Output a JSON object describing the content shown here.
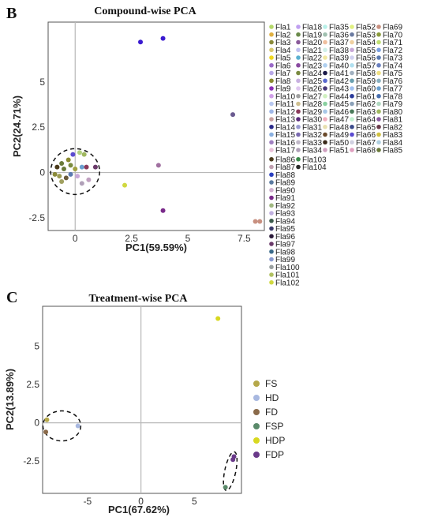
{
  "chart_data": [
    {
      "panel_label": "B",
      "type": "scatter",
      "title": "Compound-wise PCA",
      "xlabel": "PC1(59.59%)",
      "ylabel": "PC2(24.71%)",
      "xlim": [
        -1.2,
        8.4
      ],
      "ylim": [
        -3.2,
        8.3
      ],
      "xticks": [
        "0",
        "2.5",
        "5",
        "7.5"
      ],
      "xtick_values": [
        0,
        2.5,
        5,
        7.5
      ],
      "yticks": [
        "5",
        "2.5",
        "0",
        "-2.5"
      ],
      "ytick_values": [
        5,
        2.5,
        0,
        -2.5
      ],
      "grid": true,
      "legend_position": "right",
      "legend": [
        {
          "name": "Fla1",
          "color": "#b5d86a"
        },
        {
          "name": "Fla2",
          "color": "#e0b040"
        },
        {
          "name": "Fla3",
          "color": "#8a8a3a"
        },
        {
          "name": "Fla4",
          "color": "#d8c870"
        },
        {
          "name": "Fla5",
          "color": "#f0d820"
        },
        {
          "name": "Fla6",
          "color": "#9a6ac8"
        },
        {
          "name": "Fla7",
          "color": "#b8a8e8"
        },
        {
          "name": "Fla8",
          "color": "#8a8a30"
        },
        {
          "name": "Fla9",
          "color": "#8a30b8"
        },
        {
          "name": "Fla10",
          "color": "#d0a0e8"
        },
        {
          "name": "Fla11",
          "color": "#b8c8f0"
        },
        {
          "name": "Fla12",
          "color": "#a0b8e8"
        },
        {
          "name": "Fla13",
          "color": "#c8a0a0"
        },
        {
          "name": "Fla14",
          "color": "#2a2a8a"
        },
        {
          "name": "Fla15",
          "color": "#8ab0e0"
        },
        {
          "name": "Fla16",
          "color": "#a080c0"
        },
        {
          "name": "Fla17",
          "color": "#e8c0d8"
        },
        {
          "name": "Fla18",
          "color": "#c0a0f0"
        },
        {
          "name": "Fla19",
          "color": "#6a8a4a"
        },
        {
          "name": "Fla20",
          "color": "#8a5a9a"
        },
        {
          "name": "Fla21",
          "color": "#c0c0f0"
        },
        {
          "name": "Fla22",
          "color": "#5ab0d0"
        },
        {
          "name": "Fla23",
          "color": "#8a4aa0"
        },
        {
          "name": "Fla24",
          "color": "#7a8a40"
        },
        {
          "name": "Fla25",
          "color": "#c8b0e0"
        },
        {
          "name": "Fla26",
          "color": "#e0c8f0"
        },
        {
          "name": "Fla27",
          "color": "#a0a0a0"
        },
        {
          "name": "Fla28",
          "color": "#d0c090"
        },
        {
          "name": "Fla29",
          "color": "#8a3a5a"
        },
        {
          "name": "Fla30",
          "color": "#5a2a7a"
        },
        {
          "name": "Fla31",
          "color": "#9a9ad0"
        },
        {
          "name": "Fla32",
          "color": "#7a6ab0"
        },
        {
          "name": "Fla33",
          "color": "#c0b8c8"
        },
        {
          "name": "Fla34",
          "color": "#b0a0b8"
        },
        {
          "name": "Fla35",
          "color": "#b8f0e8"
        },
        {
          "name": "Fla36",
          "color": "#a0c0b0"
        },
        {
          "name": "Fla37",
          "color": "#f0c0a0"
        },
        {
          "name": "Fla38",
          "color": "#d0f0e8"
        },
        {
          "name": "Fla39",
          "color": "#f0e8a0"
        },
        {
          "name": "Fla40",
          "color": "#b0d0f0"
        },
        {
          "name": "Fla41",
          "color": "#1a1a4a"
        },
        {
          "name": "Fla42",
          "color": "#5a6ad0"
        },
        {
          "name": "Fla43",
          "color": "#4a3a7a"
        },
        {
          "name": "Fla44",
          "color": "#d0f0c0"
        },
        {
          "name": "Fla45",
          "color": "#8ad0a0"
        },
        {
          "name": "Fla46",
          "color": "#a8c8e8"
        },
        {
          "name": "Fla47",
          "color": "#f0b0c0"
        },
        {
          "name": "Fla48",
          "color": "#e8e0b0"
        },
        {
          "name": "Fla49",
          "color": "#6a4a2a"
        },
        {
          "name": "Fla50",
          "color": "#3a2a1a"
        },
        {
          "name": "Fla51",
          "color": "#d0a0c0"
        },
        {
          "name": "Fla52",
          "color": "#e0f080"
        },
        {
          "name": "Fla53",
          "color": "#6a7aa0"
        },
        {
          "name": "Fla54",
          "color": "#f0d0a0"
        },
        {
          "name": "Fla55",
          "color": "#c8a8d8"
        },
        {
          "name": "Fla56",
          "color": "#d0d0f0"
        },
        {
          "name": "Fla57",
          "color": "#b0e0f0"
        },
        {
          "name": "Fla58",
          "color": "#a0b0c0"
        },
        {
          "name": "Fla59",
          "color": "#6aa0b0"
        },
        {
          "name": "Fla60",
          "color": "#a0c0f0"
        },
        {
          "name": "Fla61",
          "color": "#2a3a9a"
        },
        {
          "name": "Fla62",
          "color": "#8aa0b8"
        },
        {
          "name": "Fla63",
          "color": "#4a7a5a"
        },
        {
          "name": "Fla64",
          "color": "#c0f0d0"
        },
        {
          "name": "Fla65",
          "color": "#3a4a8a"
        },
        {
          "name": "Fla66",
          "color": "#5a4ad0"
        },
        {
          "name": "Fla67",
          "color": "#d0d0e0"
        },
        {
          "name": "Fla68",
          "color": "#e0a0c0"
        },
        {
          "name": "Fla69",
          "color": "#c89080"
        },
        {
          "name": "Fla70",
          "color": "#8a9a3a"
        },
        {
          "name": "Fla71",
          "color": "#c0e070"
        },
        {
          "name": "Fla72",
          "color": "#7aa0e0"
        },
        {
          "name": "Fla73",
          "color": "#5a7ab0"
        },
        {
          "name": "Fla74",
          "color": "#6a80c0"
        },
        {
          "name": "Fla75",
          "color": "#f0e080"
        },
        {
          "name": "Fla76",
          "color": "#8ab0c0"
        },
        {
          "name": "Fla77",
          "color": "#6aa0d0"
        },
        {
          "name": "Fla78",
          "color": "#4a70b0"
        },
        {
          "name": "Fla79",
          "color": "#b0d8c0"
        },
        {
          "name": "Fla80",
          "color": "#a0b860"
        },
        {
          "name": "Fla81",
          "color": "#8a5aa0"
        },
        {
          "name": "Fla82",
          "color": "#6a3a4a"
        },
        {
          "name": "Fla83",
          "color": "#d0c040"
        },
        {
          "name": "Fla84",
          "color": "#b0d0e0"
        },
        {
          "name": "Fla85",
          "color": "#6a7a3a"
        },
        {
          "name": "Fla86",
          "color": "#4a3a1a"
        },
        {
          "name": "Fla87",
          "color": "#c0a0b0"
        },
        {
          "name": "Fla88",
          "color": "#2a40c0"
        },
        {
          "name": "Fla89",
          "color": "#5a7aa0"
        },
        {
          "name": "Fla90",
          "color": "#d0b0d0"
        },
        {
          "name": "Fla91",
          "color": "#7a2a8a"
        },
        {
          "name": "Fla92",
          "color": "#a0b880"
        },
        {
          "name": "Fla93",
          "color": "#c0b0e0"
        },
        {
          "name": "Fla94",
          "color": "#3a5a4a"
        },
        {
          "name": "Fla95",
          "color": "#3a3a6a"
        },
        {
          "name": "Fla96",
          "color": "#2a1a3a"
        },
        {
          "name": "Fla97",
          "color": "#6a3a6a"
        },
        {
          "name": "Fla98",
          "color": "#3a6a8a"
        },
        {
          "name": "Fla99",
          "color": "#8a9ad0"
        },
        {
          "name": "Fla100",
          "color": "#9aa0a0"
        },
        {
          "name": "Fla101",
          "color": "#b0c060"
        },
        {
          "name": "Fla102",
          "color": "#d0d840"
        },
        {
          "name": "Fla103",
          "color": "#3a8a4a"
        },
        {
          "name": "Fla104",
          "color": "#2a2a2a"
        }
      ],
      "points": [
        {
          "x": 3.9,
          "y": 7.4,
          "color": "#3a1ad0"
        },
        {
          "x": 2.9,
          "y": 7.2,
          "color": "#3a1ad0"
        },
        {
          "x": 7.0,
          "y": 3.2,
          "color": "#6a5a90"
        },
        {
          "x": 3.7,
          "y": 0.4,
          "color": "#a070a0"
        },
        {
          "x": 2.2,
          "y": -0.7,
          "color": "#d0d840"
        },
        {
          "x": 3.9,
          "y": -2.1,
          "color": "#7a2a8a"
        },
        {
          "x": 8.0,
          "y": -2.7,
          "color": "#c89080"
        },
        {
          "x": 8.2,
          "y": -2.7,
          "color": "#c89080"
        },
        {
          "x": -0.1,
          "y": 1.0,
          "color": "#5a4ad0"
        },
        {
          "x": 0.2,
          "y": 1.1,
          "color": "#b0d080"
        },
        {
          "x": 0.4,
          "y": 1.0,
          "color": "#a0b860"
        },
        {
          "x": -0.6,
          "y": 0.5,
          "color": "#6a7a3a"
        },
        {
          "x": -0.3,
          "y": 0.7,
          "color": "#8a8a30"
        },
        {
          "x": -0.8,
          "y": 0.3,
          "color": "#4a3a1a"
        },
        {
          "x": -0.5,
          "y": 0.2,
          "color": "#6a7a3a"
        },
        {
          "x": -0.9,
          "y": -0.1,
          "color": "#8a8a3a"
        },
        {
          "x": -0.7,
          "y": -0.2,
          "color": "#9a9a50"
        },
        {
          "x": -0.4,
          "y": -0.3,
          "color": "#6a5a3a"
        },
        {
          "x": -0.2,
          "y": 0.4,
          "color": "#7a8a40"
        },
        {
          "x": 0.0,
          "y": 0.2,
          "color": "#a0a040"
        },
        {
          "x": 0.3,
          "y": 0.3,
          "color": "#6aa0d0"
        },
        {
          "x": 0.5,
          "y": 0.3,
          "color": "#8a3a5a"
        },
        {
          "x": 0.9,
          "y": 0.3,
          "color": "#6a3a6a"
        },
        {
          "x": 0.6,
          "y": -0.4,
          "color": "#c0a0c0"
        },
        {
          "x": 0.3,
          "y": -0.6,
          "color": "#b0a0b8"
        },
        {
          "x": -0.6,
          "y": -0.5,
          "color": "#a0a060"
        },
        {
          "x": -0.2,
          "y": -0.1,
          "color": "#5a7ab0"
        },
        {
          "x": 0.1,
          "y": -0.2,
          "color": "#c8a8d8"
        }
      ]
    },
    {
      "panel_label": "C",
      "type": "scatter",
      "title": "Treatment-wise PCA",
      "xlabel": "PC1(67.62%)",
      "ylabel": "PC2(13.89%)",
      "xlim": [
        -9.2,
        9.4
      ],
      "ylim": [
        -4.6,
        7.6
      ],
      "xticks": [
        "-5",
        "0",
        "5"
      ],
      "xtick_values": [
        -5,
        0,
        5
      ],
      "yticks": [
        "5",
        "2.5",
        "0",
        "-2.5"
      ],
      "ytick_values": [
        5,
        2.5,
        0,
        -2.5
      ],
      "grid": true,
      "legend_position": "right",
      "series": [
        {
          "name": "FS",
          "color": "#b5a84a",
          "points": [
            [
              -8.8,
              0.2
            ]
          ]
        },
        {
          "name": "HD",
          "color": "#a8b8e0",
          "points": [
            [
              -5.9,
              -0.2
            ]
          ]
        },
        {
          "name": "FD",
          "color": "#8a6a4a",
          "points": [
            [
              -8.9,
              -0.6
            ]
          ]
        },
        {
          "name": "FSP",
          "color": "#5a8a6a",
          "points": [
            [
              7.9,
              -4.2
            ]
          ]
        },
        {
          "name": "HDP",
          "color": "#d8d820",
          "points": [
            [
              7.2,
              6.8
            ]
          ]
        },
        {
          "name": "FDP",
          "color": "#6a3a8a",
          "points": [
            [
              8.7,
              -2.2
            ],
            [
              8.6,
              -2.4
            ]
          ]
        }
      ]
    }
  ]
}
